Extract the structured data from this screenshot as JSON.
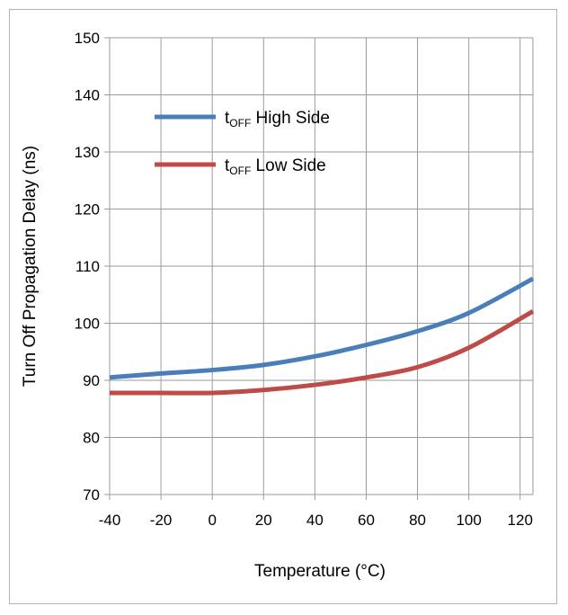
{
  "chart_data": {
    "type": "line",
    "title": "",
    "xlabel": "Temperature (°C)",
    "ylabel": "Turn Off Propagation Delay (ns)",
    "xlim": [
      -40,
      125
    ],
    "ylim": [
      70,
      150
    ],
    "xticks": [
      -40,
      -20,
      0,
      20,
      40,
      60,
      80,
      100,
      120
    ],
    "yticks": [
      70,
      80,
      90,
      100,
      110,
      120,
      130,
      140,
      150
    ],
    "grid": true,
    "legend_position": "upper-left",
    "series": [
      {
        "name_main": "t",
        "name_sub": "OFF",
        "name_rest": " High Side",
        "color": "#4a7ebb",
        "x": [
          -40,
          -20,
          0,
          20,
          40,
          60,
          80,
          100,
          125
        ],
        "y": [
          90.5,
          91.2,
          91.8,
          92.7,
          94.2,
          96.2,
          98.6,
          101.8,
          107.8
        ]
      },
      {
        "name_main": "t",
        "name_sub": "OFF",
        "name_rest": " Low Side",
        "color": "#be4b48",
        "x": [
          -40,
          -20,
          0,
          20,
          40,
          60,
          80,
          100,
          125
        ],
        "y": [
          87.8,
          87.8,
          87.8,
          88.3,
          89.2,
          90.5,
          92.3,
          95.7,
          102.1
        ]
      }
    ]
  }
}
